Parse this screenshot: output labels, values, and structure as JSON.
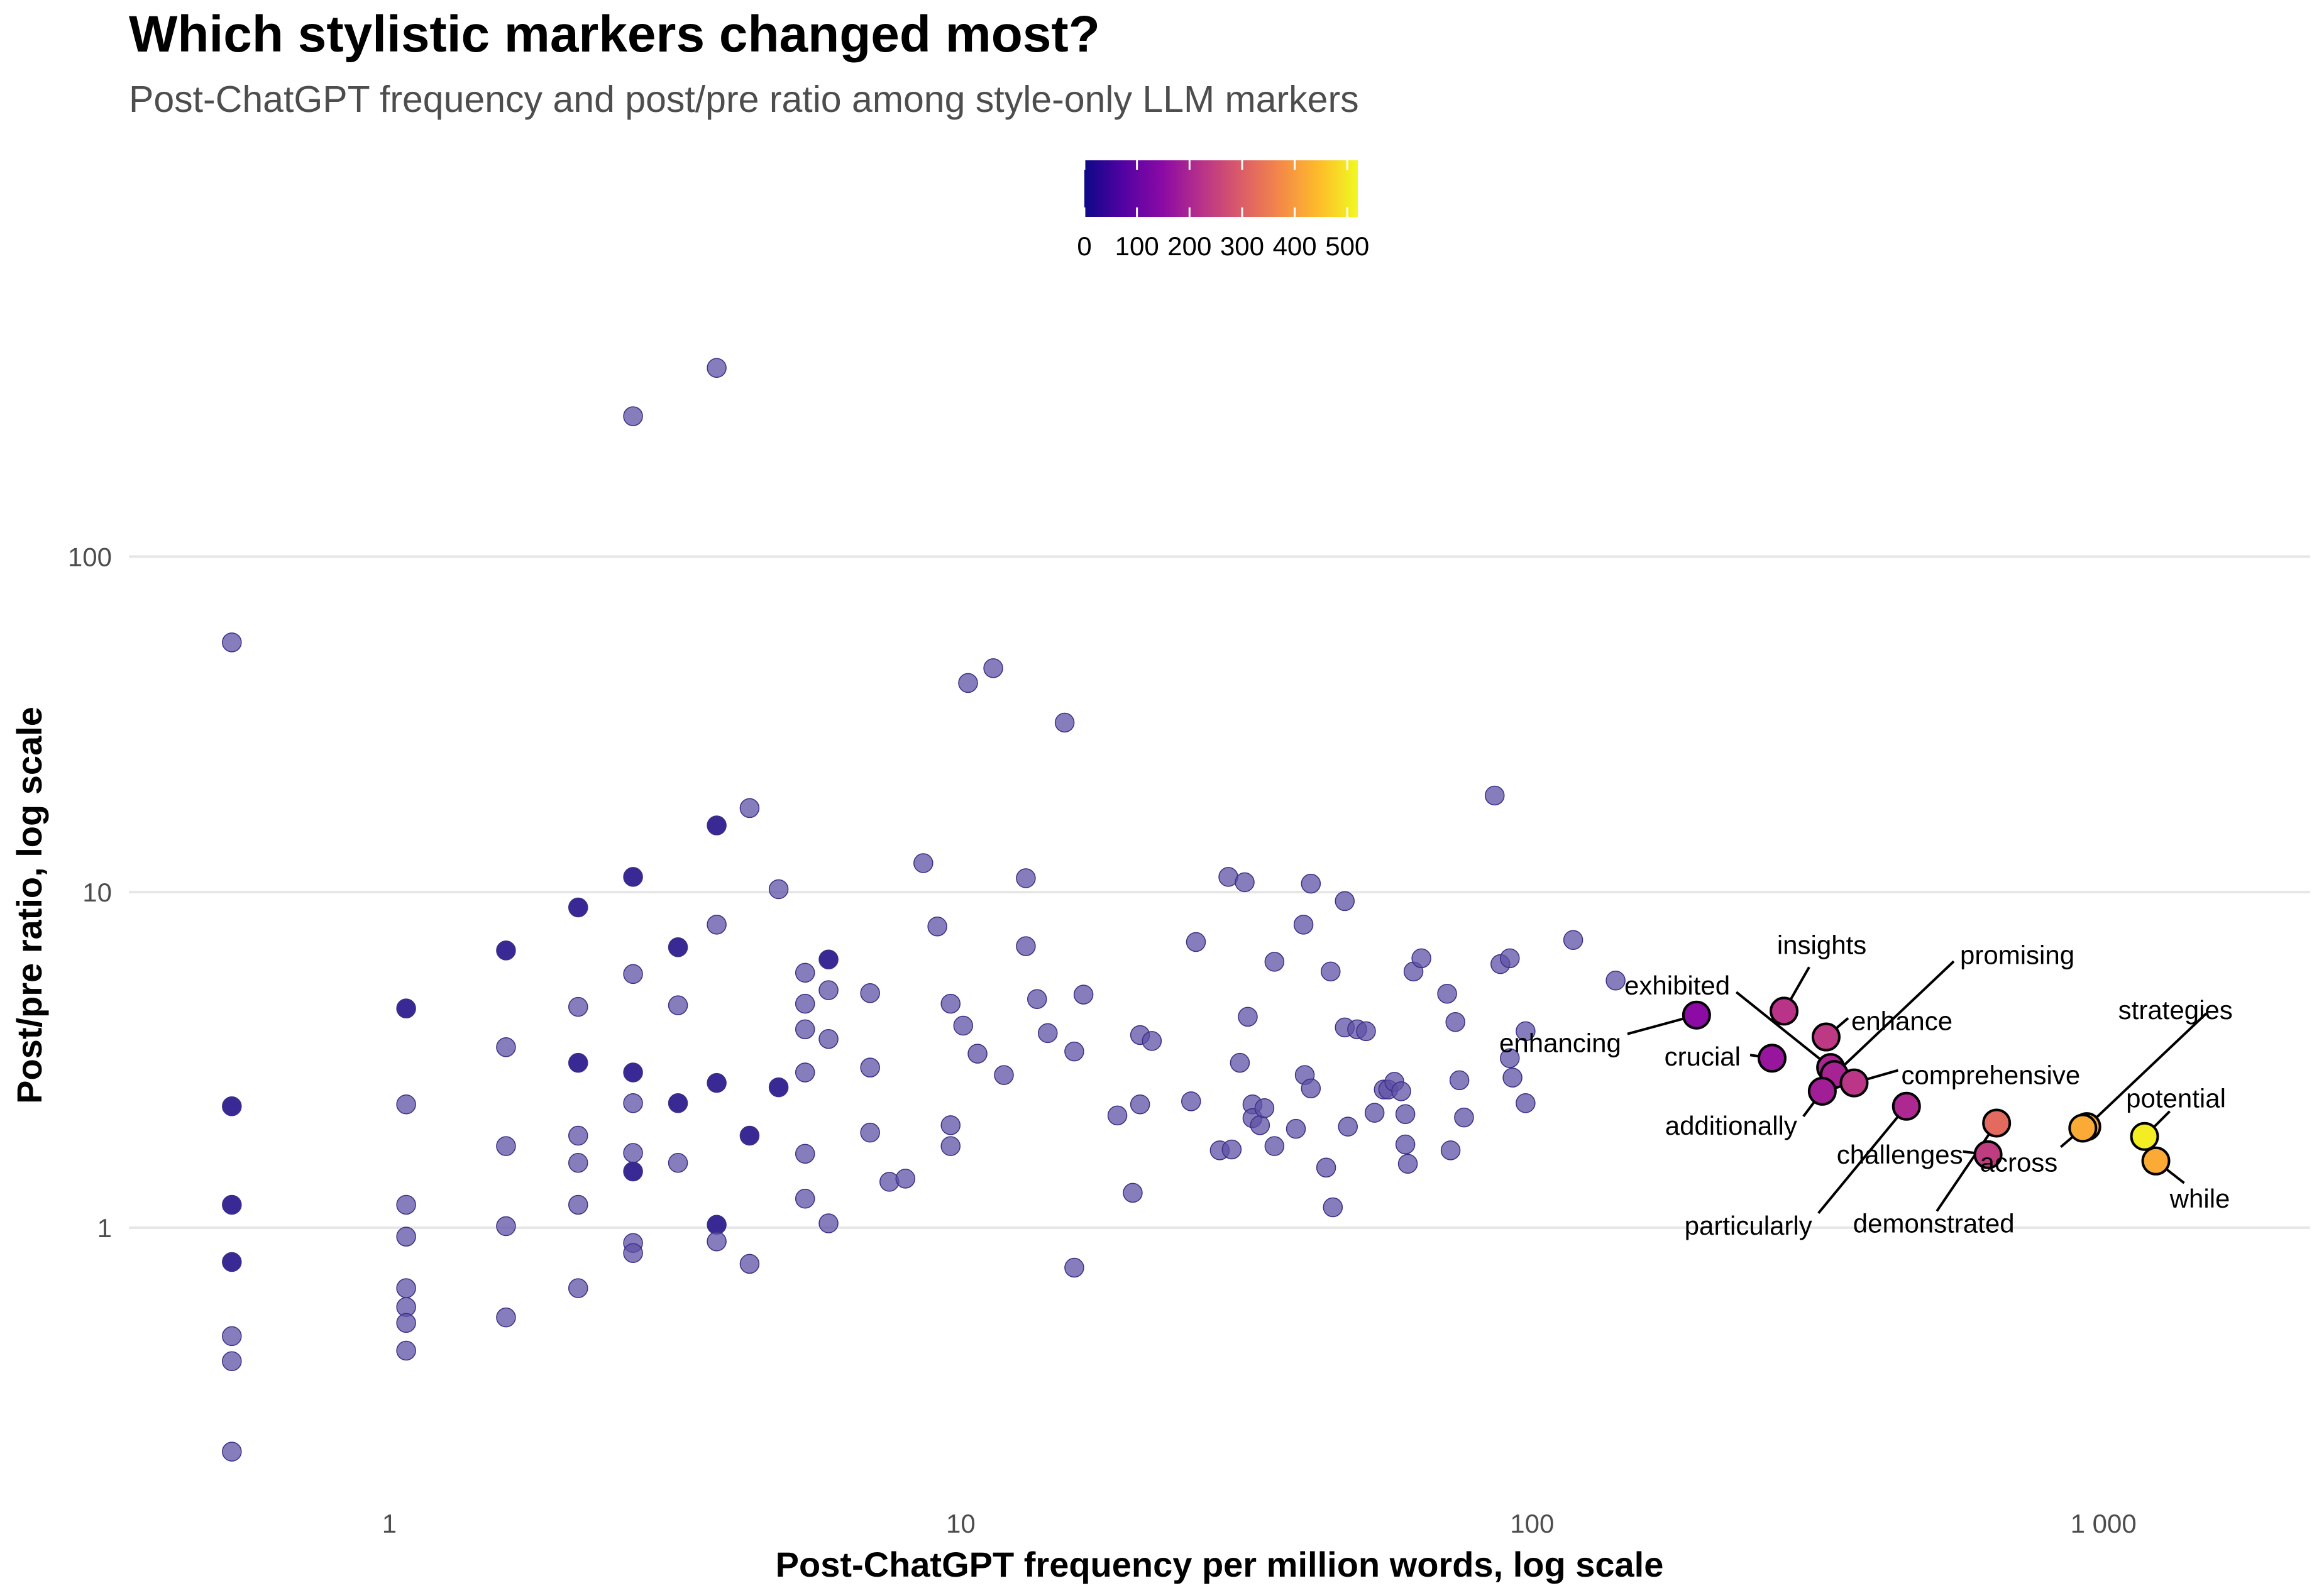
{
  "chart_data": {
    "type": "scatter",
    "title": "Which stylistic markers changed most?",
    "subtitle": "Post-ChatGPT frequency and post/pre ratio among style-only LLM markers",
    "xlabel": "Post-ChatGPT frequency per million words, log scale",
    "ylabel": "Post/pre ratio, log scale",
    "x_scale": "log",
    "y_scale": "log",
    "xlim": [
      0.35,
      2300
    ],
    "ylim": [
      0.155,
      600
    ],
    "x_ticks": [
      1,
      10,
      100,
      1000
    ],
    "x_tick_labels": [
      "1",
      "10",
      "100",
      "1 000"
    ],
    "y_ticks": [
      1,
      10,
      100
    ],
    "y_tick_labels": [
      "1",
      "10",
      "100"
    ],
    "grid": "horizontal major",
    "legend": {
      "type": "colorbar",
      "placement": "top",
      "range": [
        0,
        520
      ],
      "ticks": [
        0,
        100,
        200,
        300,
        400,
        500
      ],
      "tick_labels": [
        "0",
        "100",
        "200",
        "300",
        "400",
        "500"
      ],
      "palette": [
        "#0d0887",
        "#5302a3",
        "#8b0aa5",
        "#b83289",
        "#db5c68",
        "#f48849",
        "#febc2a",
        "#f0f921"
      ]
    },
    "colors": {
      "background_point": "#5e52a6",
      "highlight_outline": "#000000",
      "grid": "#e6e6e6"
    },
    "background_points": [
      {
        "x": 0.53,
        "y": 55.5,
        "c": 10
      },
      {
        "x": 0.53,
        "y": 2.3,
        "c": 40
      },
      {
        "x": 0.53,
        "y": 1.17,
        "c": 40
      },
      {
        "x": 0.53,
        "y": 0.79,
        "c": 40
      },
      {
        "x": 0.53,
        "y": 0.475,
        "c": 10
      },
      {
        "x": 0.53,
        "y": 0.4,
        "c": 10
      },
      {
        "x": 0.53,
        "y": 0.215,
        "c": 10
      },
      {
        "x": 1.07,
        "y": 4.5,
        "c": 40
      },
      {
        "x": 1.07,
        "y": 2.33,
        "c": 10
      },
      {
        "x": 1.07,
        "y": 1.17,
        "c": 10
      },
      {
        "x": 1.07,
        "y": 0.94,
        "c": 10
      },
      {
        "x": 1.07,
        "y": 0.66,
        "c": 10
      },
      {
        "x": 1.07,
        "y": 0.58,
        "c": 10
      },
      {
        "x": 1.07,
        "y": 0.52,
        "c": 10
      },
      {
        "x": 1.07,
        "y": 0.43,
        "c": 10
      },
      {
        "x": 1.6,
        "y": 6.7,
        "c": 40
      },
      {
        "x": 1.6,
        "y": 3.45,
        "c": 10
      },
      {
        "x": 1.6,
        "y": 1.75,
        "c": 10
      },
      {
        "x": 1.6,
        "y": 1.01,
        "c": 10
      },
      {
        "x": 1.6,
        "y": 0.54,
        "c": 10
      },
      {
        "x": 2.14,
        "y": 9.0,
        "c": 40
      },
      {
        "x": 2.14,
        "y": 4.55,
        "c": 10
      },
      {
        "x": 2.14,
        "y": 3.1,
        "c": 40
      },
      {
        "x": 2.14,
        "y": 1.88,
        "c": 10
      },
      {
        "x": 2.14,
        "y": 1.56,
        "c": 10
      },
      {
        "x": 2.14,
        "y": 1.17,
        "c": 10
      },
      {
        "x": 2.14,
        "y": 0.66,
        "c": 10
      },
      {
        "x": 2.67,
        "y": 262,
        "c": 10
      },
      {
        "x": 2.67,
        "y": 11.1,
        "c": 40
      },
      {
        "x": 2.67,
        "y": 5.7,
        "c": 10
      },
      {
        "x": 2.67,
        "y": 2.9,
        "c": 40
      },
      {
        "x": 2.67,
        "y": 2.35,
        "c": 10
      },
      {
        "x": 2.67,
        "y": 1.67,
        "c": 10
      },
      {
        "x": 2.67,
        "y": 1.47,
        "c": 40
      },
      {
        "x": 2.67,
        "y": 0.9,
        "c": 10
      },
      {
        "x": 2.67,
        "y": 0.84,
        "c": 10
      },
      {
        "x": 3.2,
        "y": 6.85,
        "c": 40
      },
      {
        "x": 3.2,
        "y": 4.6,
        "c": 10
      },
      {
        "x": 3.2,
        "y": 2.35,
        "c": 40
      },
      {
        "x": 3.2,
        "y": 1.56,
        "c": 10
      },
      {
        "x": 3.74,
        "y": 365,
        "c": 10
      },
      {
        "x": 3.74,
        "y": 15.8,
        "c": 40
      },
      {
        "x": 3.74,
        "y": 8.0,
        "c": 10
      },
      {
        "x": 3.74,
        "y": 2.7,
        "c": 40
      },
      {
        "x": 3.74,
        "y": 1.02,
        "c": 40
      },
      {
        "x": 3.74,
        "y": 0.91,
        "c": 10
      },
      {
        "x": 4.27,
        "y": 17.8,
        "c": 10
      },
      {
        "x": 4.27,
        "y": 1.88,
        "c": 40
      },
      {
        "x": 4.27,
        "y": 0.78,
        "c": 10
      },
      {
        "x": 4.8,
        "y": 10.2,
        "c": 10
      },
      {
        "x": 4.8,
        "y": 2.62,
        "c": 40
      },
      {
        "x": 5.34,
        "y": 5.75,
        "c": 10
      },
      {
        "x": 5.34,
        "y": 4.65,
        "c": 10
      },
      {
        "x": 5.34,
        "y": 3.9,
        "c": 10
      },
      {
        "x": 5.34,
        "y": 2.9,
        "c": 10
      },
      {
        "x": 5.34,
        "y": 1.66,
        "c": 10
      },
      {
        "x": 5.34,
        "y": 1.22,
        "c": 10
      },
      {
        "x": 5.87,
        "y": 6.3,
        "c": 40
      },
      {
        "x": 5.87,
        "y": 5.1,
        "c": 10
      },
      {
        "x": 5.87,
        "y": 3.65,
        "c": 10
      },
      {
        "x": 5.87,
        "y": 1.03,
        "c": 10
      },
      {
        "x": 6.94,
        "y": 5.0,
        "c": 10
      },
      {
        "x": 6.94,
        "y": 3.0,
        "c": 10
      },
      {
        "x": 6.94,
        "y": 1.92,
        "c": 10
      },
      {
        "x": 7.5,
        "y": 1.37,
        "c": 10
      },
      {
        "x": 8.0,
        "y": 1.4,
        "c": 10
      },
      {
        "x": 8.6,
        "y": 12.2,
        "c": 10
      },
      {
        "x": 9.1,
        "y": 7.9,
        "c": 10
      },
      {
        "x": 9.6,
        "y": 4.65,
        "c": 10
      },
      {
        "x": 9.6,
        "y": 2.02,
        "c": 10
      },
      {
        "x": 9.6,
        "y": 1.75,
        "c": 10
      },
      {
        "x": 10.1,
        "y": 4.0,
        "c": 10
      },
      {
        "x": 10.3,
        "y": 42,
        "c": 10
      },
      {
        "x": 10.7,
        "y": 3.3,
        "c": 10
      },
      {
        "x": 11.4,
        "y": 46.5,
        "c": 10
      },
      {
        "x": 11.9,
        "y": 2.85,
        "c": 10
      },
      {
        "x": 13.0,
        "y": 11.0,
        "c": 10
      },
      {
        "x": 13.0,
        "y": 6.9,
        "c": 10
      },
      {
        "x": 13.6,
        "y": 4.8,
        "c": 10
      },
      {
        "x": 14.2,
        "y": 3.8,
        "c": 10
      },
      {
        "x": 15.2,
        "y": 32,
        "c": 10
      },
      {
        "x": 15.8,
        "y": 3.35,
        "c": 10
      },
      {
        "x": 15.8,
        "y": 0.76,
        "c": 10
      },
      {
        "x": 16.4,
        "y": 4.95,
        "c": 10
      },
      {
        "x": 18.8,
        "y": 2.16,
        "c": 10
      },
      {
        "x": 20.0,
        "y": 1.27,
        "c": 10
      },
      {
        "x": 20.6,
        "y": 3.75,
        "c": 10
      },
      {
        "x": 20.6,
        "y": 2.33,
        "c": 10
      },
      {
        "x": 21.6,
        "y": 3.6,
        "c": 10
      },
      {
        "x": 25.3,
        "y": 2.38,
        "c": 10
      },
      {
        "x": 25.8,
        "y": 7.1,
        "c": 10
      },
      {
        "x": 28.4,
        "y": 1.7,
        "c": 10
      },
      {
        "x": 29.4,
        "y": 11.1,
        "c": 10
      },
      {
        "x": 29.8,
        "y": 1.71,
        "c": 10
      },
      {
        "x": 30.8,
        "y": 3.1,
        "c": 10
      },
      {
        "x": 31.4,
        "y": 10.7,
        "c": 10
      },
      {
        "x": 31.8,
        "y": 4.25,
        "c": 10
      },
      {
        "x": 32.4,
        "y": 2.33,
        "c": 10
      },
      {
        "x": 32.4,
        "y": 2.12,
        "c": 10
      },
      {
        "x": 33.4,
        "y": 2.02,
        "c": 10
      },
      {
        "x": 34.0,
        "y": 2.27,
        "c": 10
      },
      {
        "x": 35.4,
        "y": 6.2,
        "c": 10
      },
      {
        "x": 35.4,
        "y": 1.75,
        "c": 10
      },
      {
        "x": 38.6,
        "y": 1.97,
        "c": 10
      },
      {
        "x": 39.8,
        "y": 8.0,
        "c": 10
      },
      {
        "x": 40.0,
        "y": 2.85,
        "c": 10
      },
      {
        "x": 41.0,
        "y": 10.6,
        "c": 10
      },
      {
        "x": 41.0,
        "y": 2.6,
        "c": 10
      },
      {
        "x": 43.6,
        "y": 1.51,
        "c": 10
      },
      {
        "x": 44.4,
        "y": 5.8,
        "c": 10
      },
      {
        "x": 44.8,
        "y": 1.15,
        "c": 10
      },
      {
        "x": 47.0,
        "y": 9.4,
        "c": 10
      },
      {
        "x": 47.0,
        "y": 3.95,
        "c": 10
      },
      {
        "x": 47.6,
        "y": 2.0,
        "c": 10
      },
      {
        "x": 49.4,
        "y": 3.9,
        "c": 10
      },
      {
        "x": 51.2,
        "y": 3.85,
        "c": 10
      },
      {
        "x": 53.0,
        "y": 2.2,
        "c": 10
      },
      {
        "x": 55.0,
        "y": 2.58,
        "c": 10
      },
      {
        "x": 56.0,
        "y": 2.58,
        "c": 10
      },
      {
        "x": 57.4,
        "y": 2.72,
        "c": 10
      },
      {
        "x": 59.0,
        "y": 2.55,
        "c": 10
      },
      {
        "x": 60.0,
        "y": 2.18,
        "c": 10
      },
      {
        "x": 60.0,
        "y": 1.77,
        "c": 10
      },
      {
        "x": 60.6,
        "y": 1.55,
        "c": 10
      },
      {
        "x": 62.0,
        "y": 5.8,
        "c": 10
      },
      {
        "x": 64.0,
        "y": 6.35,
        "c": 10
      },
      {
        "x": 71.0,
        "y": 4.98,
        "c": 10
      },
      {
        "x": 72.0,
        "y": 1.7,
        "c": 10
      },
      {
        "x": 73.4,
        "y": 4.1,
        "c": 10
      },
      {
        "x": 74.6,
        "y": 2.75,
        "c": 10
      },
      {
        "x": 76.0,
        "y": 2.13,
        "c": 10
      },
      {
        "x": 86.0,
        "y": 19.4,
        "c": 10
      },
      {
        "x": 88.0,
        "y": 6.1,
        "c": 10
      },
      {
        "x": 91.4,
        "y": 6.35,
        "c": 10
      },
      {
        "x": 91.4,
        "y": 3.2,
        "c": 10
      },
      {
        "x": 92.4,
        "y": 2.8,
        "c": 10
      },
      {
        "x": 97.4,
        "y": 3.85,
        "c": 10
      },
      {
        "x": 97.4,
        "y": 2.35,
        "c": 10
      },
      {
        "x": 118.0,
        "y": 7.2,
        "c": 10
      },
      {
        "x": 140.0,
        "y": 5.45,
        "c": 10
      }
    ],
    "highlighted": [
      {
        "label": "enhancing",
        "x": 194,
        "y": 4.3,
        "c": 150
      },
      {
        "label": "insights",
        "x": 276,
        "y": 4.42,
        "c": 225
      },
      {
        "label": "crucial",
        "x": 263,
        "y": 3.2,
        "c": 170
      },
      {
        "label": "enhance",
        "x": 327,
        "y": 3.7,
        "c": 235
      },
      {
        "label": "exhibited",
        "x": 333,
        "y": 3.0,
        "c": 200
      },
      {
        "label": "promising",
        "x": 338,
        "y": 2.86,
        "c": 195
      },
      {
        "label": "additionally",
        "x": 322,
        "y": 2.55,
        "c": 185
      },
      {
        "label": "comprehensive",
        "x": 366,
        "y": 2.7,
        "c": 230
      },
      {
        "label": "particularly",
        "x": 452,
        "y": 2.3,
        "c": 205
      },
      {
        "label": "challenges",
        "x": 628,
        "y": 1.65,
        "c": 240
      },
      {
        "label": "demonstrated",
        "x": 650,
        "y": 2.05,
        "c": 320
      },
      {
        "label": "strategies",
        "x": 935,
        "y": 2.0,
        "c": 420
      },
      {
        "label": "across",
        "x": 920,
        "y": 1.98,
        "c": 420
      },
      {
        "label": "potential",
        "x": 1180,
        "y": 1.87,
        "c": 505
      },
      {
        "label": "while",
        "x": 1235,
        "y": 1.58,
        "c": 420
      }
    ]
  }
}
